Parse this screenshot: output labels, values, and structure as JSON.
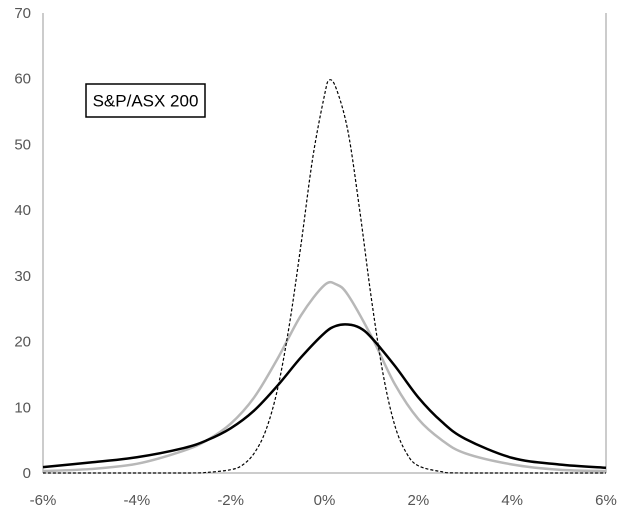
{
  "chart_data": {
    "type": "line",
    "title": "",
    "xlabel": "",
    "ylabel": "",
    "xlim": [
      -6,
      6
    ],
    "ylim": [
      0,
      70
    ],
    "x_tick_labels": [
      "-6%",
      "-4%",
      "-2%",
      "0%",
      "2%",
      "4%",
      "6%"
    ],
    "y_tick_labels": [
      "0",
      "10",
      "20",
      "30",
      "40",
      "50",
      "60",
      "70"
    ],
    "grid": false,
    "legend": {
      "text": "S&P/ASX 200",
      "placement": "top-left"
    },
    "series": [
      {
        "style": "solid-black",
        "color": "#000000",
        "x": [
          -6,
          -5,
          -4,
          -3,
          -2.5,
          -2,
          -1.5,
          -1,
          -0.5,
          0,
          0.25,
          0.5,
          0.75,
          1,
          1.5,
          2,
          2.5,
          3,
          4,
          5,
          6
        ],
        "y": [
          0.9,
          1.6,
          2.4,
          3.8,
          5.0,
          6.8,
          9.5,
          13.3,
          17.6,
          21.3,
          22.4,
          22.6,
          22.1,
          20.6,
          16.3,
          11.5,
          7.8,
          5.2,
          2.3,
          1.3,
          0.8
        ]
      },
      {
        "style": "solid-grey",
        "color": "#b8b8b8",
        "x": [
          -6,
          -5,
          -4,
          -3,
          -2.5,
          -2,
          -1.5,
          -1,
          -0.5,
          0,
          0.25,
          0.5,
          1,
          1.5,
          2,
          2.5,
          3,
          4,
          5,
          6
        ],
        "y": [
          0.3,
          0.6,
          1.4,
          3.4,
          5.0,
          7.5,
          11.5,
          17.4,
          24.0,
          28.6,
          28.7,
          27.1,
          20.8,
          13.5,
          8.2,
          5.0,
          3.0,
          1.3,
          0.5,
          0.3
        ]
      },
      {
        "style": "dashed-black",
        "color": "#000000",
        "x": [
          -6,
          -3,
          -2.5,
          -2,
          -1.75,
          -1.5,
          -1.25,
          -1,
          -0.75,
          -0.5,
          -0.25,
          0,
          0.1,
          0.25,
          0.5,
          0.75,
          1,
          1.25,
          1.5,
          1.75,
          2,
          2.5,
          3,
          6
        ],
        "y": [
          0,
          0,
          0.1,
          0.5,
          1.2,
          3.0,
          6.5,
          12.8,
          22.5,
          34.8,
          48.0,
          57.5,
          59.8,
          58.5,
          52.0,
          40.0,
          26.5,
          15.0,
          7.2,
          3.0,
          1.1,
          0.2,
          0,
          0
        ]
      }
    ]
  }
}
